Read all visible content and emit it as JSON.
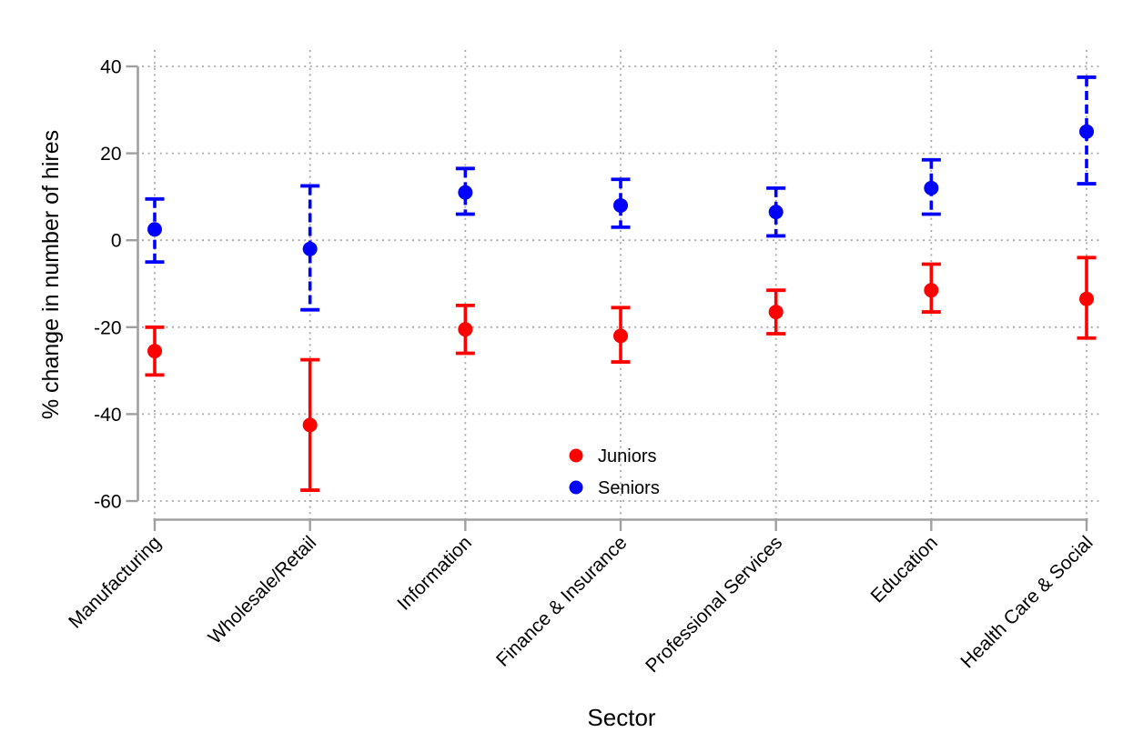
{
  "chart_data": {
    "type": "scatter",
    "subtype": "point-estimates-with-confidence-intervals",
    "title": "",
    "xlabel": "Sector",
    "ylabel": "% change in number of hires",
    "categories": [
      "Manufacturing",
      "Wholesale/Retail",
      "Information",
      "Finance & Insurance",
      "Professional Services",
      "Education",
      "Health Care & Social"
    ],
    "series": [
      {
        "name": "Juniors",
        "color": "#ff0000",
        "marker": "circle",
        "ci_line_style": "solid",
        "values": [
          -25.5,
          -42.5,
          -20.5,
          -22,
          -16.5,
          -11.5,
          -13.5
        ],
        "ci_low": [
          -31,
          -57.5,
          -26,
          -28,
          -21.5,
          -16.5,
          -22.5
        ],
        "ci_high": [
          -20,
          -27.5,
          -15,
          -15.5,
          -11.5,
          -5.5,
          -4
        ]
      },
      {
        "name": "Seniors",
        "color": "#0000ff",
        "marker": "circle",
        "ci_line_style": "dashed",
        "values": [
          2.5,
          -2,
          11,
          8,
          6.5,
          12,
          25
        ],
        "ci_low": [
          -5,
          -16,
          6,
          3,
          1,
          6,
          13
        ],
        "ci_high": [
          9.5,
          12.5,
          16.5,
          14,
          12,
          18.5,
          37.5
        ]
      }
    ],
    "ylim": [
      -60,
      40
    ],
    "y_ticks": [
      40,
      20,
      0,
      -20,
      -40,
      -60
    ],
    "y_tick_labels": [
      "40",
      "20",
      "0",
      "-20",
      "-40",
      "-60"
    ],
    "grid": "dotted both",
    "legend": {
      "position": "inside lower-center",
      "entries": [
        "Juniors",
        "Seniors"
      ]
    },
    "style": {
      "axis_color": "#a0a0a0",
      "grid_color": "#a8a8a8",
      "text_color": "#000000",
      "background": "#ffffff"
    }
  }
}
